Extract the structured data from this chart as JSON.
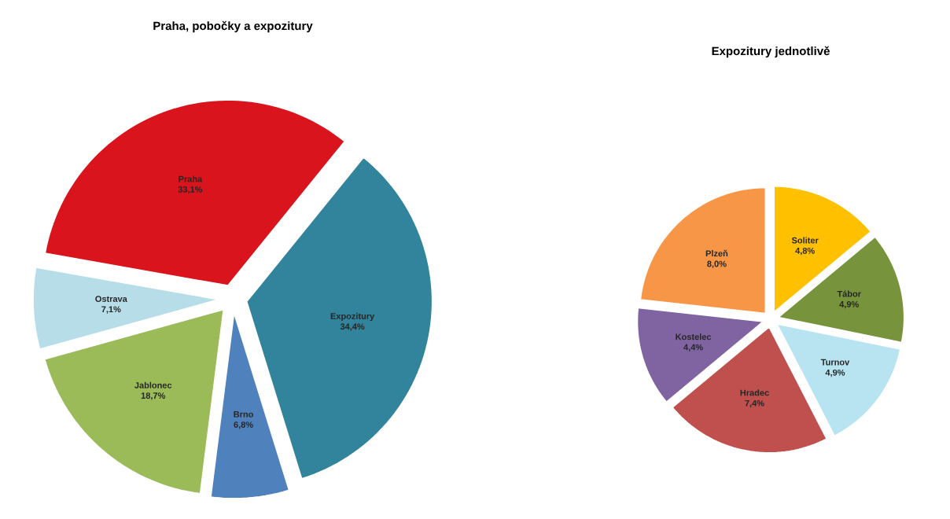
{
  "chart_data": [
    {
      "type": "pie",
      "title": "Praha, pobočky a expozitury",
      "categories": [
        "Praha",
        "Expozitury",
        "Brno",
        "Jablonec",
        "Ostrava"
      ],
      "values": [
        33.1,
        34.4,
        6.8,
        18.7,
        7.1
      ],
      "value_labels": [
        "33,1%",
        "34,4%",
        "6,8%",
        "18,7%",
        "7,1%"
      ],
      "colors": [
        "#d9141c",
        "#31849b",
        "#4f81bd",
        "#9bbb59",
        "#b7dde8"
      ]
    },
    {
      "type": "pie",
      "title": "Expozitury jednotlivě",
      "categories": [
        "Soliter",
        "Tábor",
        "Turnov",
        "Hradec",
        "Kostelec",
        "Plzeň"
      ],
      "values": [
        4.8,
        4.9,
        4.9,
        7.4,
        4.4,
        8.0
      ],
      "value_labels": [
        "4,8%",
        "4,9%",
        "4,9%",
        "7,4%",
        "4,4%",
        "8,0%"
      ],
      "colors": [
        "#ffc000",
        "#77933c",
        "#b7e4f0",
        "#c0504d",
        "#8064a2",
        "#f79646"
      ]
    }
  ]
}
